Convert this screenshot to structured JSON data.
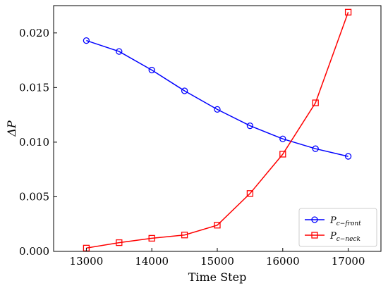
{
  "chart_data": {
    "type": "line",
    "xlabel": "Time Step",
    "ylabel": "ΔP",
    "xlim": [
      12500,
      17500
    ],
    "ylim": [
      0.0,
      0.0225
    ],
    "x_ticks": [
      13000,
      14000,
      15000,
      16000,
      17000
    ],
    "x_tick_labels": [
      "13000",
      "14000",
      "15000",
      "16000",
      "17000"
    ],
    "y_ticks": [
      0.0,
      0.005,
      0.01,
      0.015,
      0.02
    ],
    "y_tick_labels": [
      "0.000",
      "0.005",
      "0.010",
      "0.015",
      "0.020"
    ],
    "grid": false,
    "legend_position": "bottom-right",
    "x": [
      13000,
      13500,
      14000,
      14500,
      15000,
      15500,
      16000,
      16500,
      17000
    ],
    "series": [
      {
        "name": "P",
        "name_sub": "c−front",
        "color": "#0000ff",
        "marker": "circle",
        "values": [
          0.0193,
          0.0183,
          0.0166,
          0.0147,
          0.013,
          0.0115,
          0.0103,
          0.0094,
          0.0087
        ]
      },
      {
        "name": "P",
        "name_sub": "c−neck",
        "color": "#ff0000",
        "marker": "square",
        "values": [
          0.0003,
          0.0008,
          0.0012,
          0.0015,
          0.0024,
          0.0053,
          0.0089,
          0.0136,
          0.0219
        ]
      }
    ]
  }
}
